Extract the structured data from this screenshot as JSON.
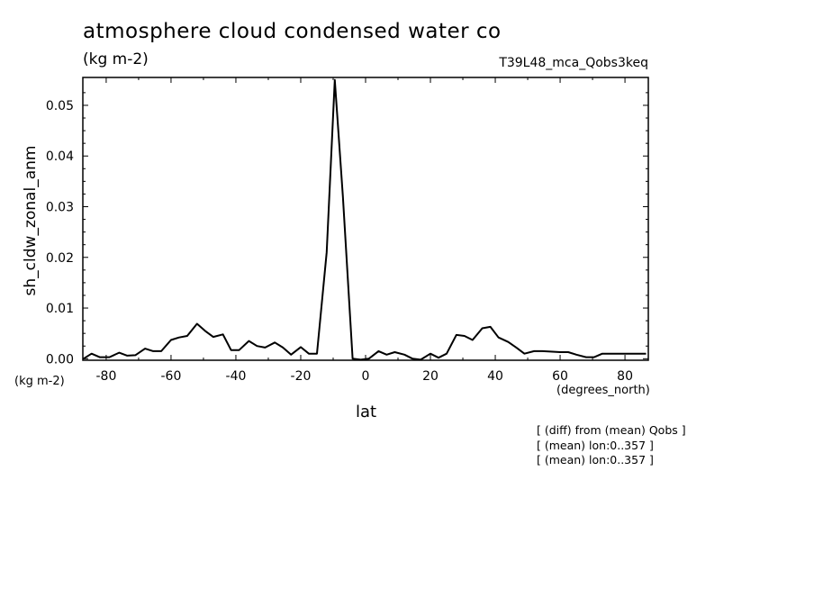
{
  "header": {
    "title": "atmosphere cloud condensed water co",
    "units": "(kg m-2)",
    "run_id": "T39L48_mca_Qobs3keq"
  },
  "axes": {
    "y_units": "(kg m-2)",
    "x_units": "(degrees_north)"
  },
  "notes": [
    "[ (diff) from (mean) Qobs ]",
    "[ (mean) lon:0..357 ]",
    "[ (mean) lon:0..357 ]"
  ],
  "chart_data": {
    "type": "line",
    "title": "atmosphere cloud condensed water co",
    "xlabel": "lat",
    "ylabel": "sh_cldw_zonal_anm",
    "xlim": [
      -87.2,
      87.2
    ],
    "ylim": [
      -0.0003,
      0.0555
    ],
    "x_ticks": [
      -80,
      -60,
      -40,
      -20,
      0,
      20,
      40,
      60,
      80
    ],
    "x_tick_labels": [
      "-80",
      "-60",
      "-40",
      "-20",
      "0",
      "20",
      "40",
      "60",
      "80"
    ],
    "y_ticks": [
      0.0,
      0.01,
      0.02,
      0.03,
      0.04,
      0.05
    ],
    "y_tick_labels": [
      "0.00",
      "0.01",
      "0.02",
      "0.03",
      "0.04",
      "0.05"
    ],
    "grid": false,
    "series": [
      {
        "color": "#000000",
        "x": [
          -87,
          -84.5,
          -82,
          -79,
          -76,
          -73.5,
          -71,
          -68,
          -65.5,
          -63,
          -60,
          -57.5,
          -55,
          -52,
          -49.5,
          -47,
          -44,
          -41.5,
          -39,
          -36,
          -33.5,
          -31,
          -28,
          -25.5,
          -23,
          -20,
          -17.5,
          -15,
          -12,
          -9.5,
          -7,
          -4,
          -1.5,
          1,
          4,
          6.5,
          9,
          12,
          14.5,
          17,
          20,
          22.5,
          25,
          28,
          30.5,
          33,
          36,
          38.5,
          41,
          44,
          46.5,
          49,
          52,
          54.5,
          57,
          60,
          62.5,
          65,
          68,
          70.5,
          73,
          76,
          78.5,
          81,
          84,
          86.5
        ],
        "y": [
          0.0,
          0.001,
          0.0003,
          0.0003,
          0.0012,
          0.0006,
          0.0007,
          0.002,
          0.0015,
          0.0015,
          0.0037,
          0.0042,
          0.0045,
          0.0069,
          0.0055,
          0.0043,
          0.0048,
          0.0017,
          0.0017,
          0.0035,
          0.0025,
          0.0022,
          0.0032,
          0.0022,
          0.0008,
          0.0023,
          0.001,
          0.001,
          0.021,
          0.055,
          0.032,
          0.0,
          -0.0002,
          0.0,
          0.0015,
          0.0008,
          0.0013,
          0.0008,
          0.0,
          -0.0002,
          0.001,
          0.0002,
          0.001,
          0.0047,
          0.0045,
          0.0037,
          0.006,
          0.0063,
          0.0042,
          0.0033,
          0.0022,
          0.001,
          0.0015,
          0.0015,
          0.0014,
          0.0013,
          0.0013,
          0.0008,
          0.0003,
          0.0003,
          0.001,
          0.001,
          0.001,
          0.001,
          0.001,
          0.001
        ]
      }
    ]
  }
}
